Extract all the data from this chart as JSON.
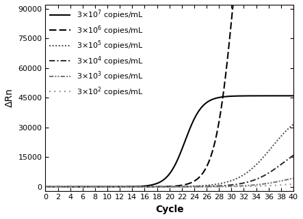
{
  "xlabel": "Cycle",
  "ylabel": "ΔRn",
  "xlim": [
    0,
    40
  ],
  "ylim": [
    -2000,
    92000
  ],
  "xticks": [
    0,
    2,
    4,
    6,
    8,
    10,
    12,
    14,
    16,
    18,
    20,
    22,
    24,
    26,
    28,
    30,
    32,
    34,
    36,
    38,
    40
  ],
  "yticks": [
    0,
    15000,
    30000,
    45000,
    60000,
    75000,
    90000
  ],
  "curves": [
    {
      "label": "3×10$^7$ copies/mL",
      "linestyle": "solid",
      "linewidth": 1.5,
      "color": "#000000",
      "L": 46000,
      "k": 0.72,
      "x0": 22.5
    },
    {
      "label": "3×10$^6$ copies/mL",
      "linestyle": "dashed",
      "linewidth": 1.5,
      "color": "#000000",
      "L": 200000,
      "k": 0.65,
      "x0": 30.5
    },
    {
      "label": "3×10$^5$ copies/mL",
      "linestyle": "dotted",
      "linewidth": 1.5,
      "color": "#555555",
      "L": 40000,
      "k": 0.38,
      "x0": 36.5
    },
    {
      "label": "3×10$^4$ copies/mL",
      "linestyle": "dashdot",
      "linewidth": 1.5,
      "color": "#333333",
      "L": 25000,
      "k": 0.38,
      "x0": 38.5
    },
    {
      "label": "3×10$^3$ copies/mL",
      "linestyle": "densely dashdotdotted",
      "linewidth": 1.5,
      "color": "#777777",
      "L": 8000,
      "k": 0.35,
      "x0": 39.5
    },
    {
      "label": "3×10$^2$ copies/mL",
      "linestyle": "loosely dotted",
      "linewidth": 1.5,
      "color": "#999999",
      "L": 3000,
      "k": 0.32,
      "x0": 40.5
    }
  ],
  "legend_fontsize": 8,
  "axis_label_fontsize": 10,
  "tick_fontsize": 8,
  "figure_facecolor": "#ffffff"
}
